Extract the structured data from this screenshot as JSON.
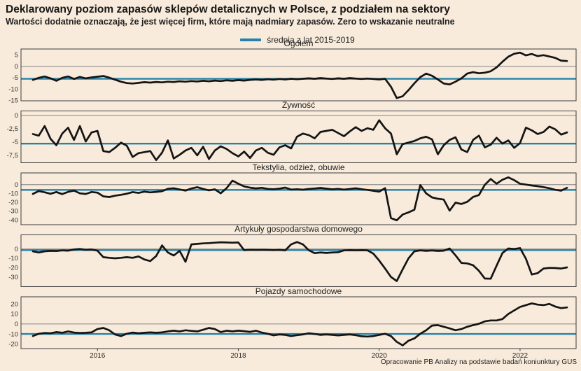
{
  "header": {
    "title": "Deklarowany poziom zapasów sklepów detalicznych w Polsce, z podziałem na sektory",
    "subtitle": "Wartości dodatnie oznaczają, że jest więcej firm, które mają nadmiary zapasów. Zero to wskazanie neutralne"
  },
  "legend": {
    "label": "średnia z lat 2015-2019"
  },
  "footer": {
    "source": "Opracowanie PB Analizy na podstawie badań koniunktury GUS"
  },
  "colors": {
    "background": "#f8ebdb",
    "series_line": "#141414",
    "average_line": "#2582a8",
    "frame": "#3d3d3d",
    "zero_line": "#8f8f8f",
    "tick_text": "#333333"
  },
  "x_axis": {
    "frequency": "monthly",
    "start": "2015-02",
    "end": "2022-09",
    "year_ticks": [
      {
        "label": "2016",
        "month_index": 11
      },
      {
        "label": "2018",
        "month_index": 35
      },
      {
        "label": "2020",
        "month_index": 59
      },
      {
        "label": "2022",
        "month_index": 83
      }
    ]
  },
  "chart_data": [
    {
      "type": "line",
      "title": "Ogółem",
      "slug": "ogolem",
      "ylim": [
        -15.2,
        7.6
      ],
      "ytick_values": [
        5,
        0,
        -5,
        -10,
        -15
      ],
      "ytick_labels": [
        "5",
        "0",
        "-5",
        "-10",
        "-15"
      ],
      "average_2015_2019": -5.5,
      "values": [
        -6.0,
        -5.1,
        -4.5,
        -5.3,
        -6.4,
        -5.1,
        -4.5,
        -5.6,
        -4.7,
        -5.3,
        -4.9,
        -4.6,
        -4.3,
        -5.0,
        -5.9,
        -6.8,
        -7.4,
        -7.6,
        -7.3,
        -7.0,
        -7.2,
        -6.9,
        -7.1,
        -6.8,
        -6.9,
        -6.6,
        -6.8,
        -6.5,
        -6.7,
        -6.4,
        -6.6,
        -6.3,
        -6.5,
        -6.2,
        -6.4,
        -6.1,
        -6.3,
        -6.0,
        -5.8,
        -6.0,
        -5.7,
        -5.9,
        -5.6,
        -5.8,
        -5.5,
        -5.7,
        -5.5,
        -5.3,
        -5.5,
        -5.2,
        -5.4,
        -5.6,
        -5.3,
        -5.5,
        -5.2,
        -5.4,
        -5.6,
        -5.4,
        -5.6,
        -5.8,
        -5.5,
        -9.0,
        -14.0,
        -13.2,
        -10.5,
        -7.5,
        -4.8,
        -3.2,
        -4.2,
        -5.8,
        -7.6,
        -8.0,
        -6.8,
        -5.3,
        -3.2,
        -2.6,
        -3.1,
        -2.8,
        -2.2,
        -0.5,
        2.0,
        4.2,
        5.5,
        6.0,
        4.8,
        5.4,
        4.5,
        4.9,
        4.3,
        3.7,
        2.5,
        2.3
      ]
    },
    {
      "type": "line",
      "title": "Żywność",
      "slug": "zywnosc",
      "ylim": [
        -8.9,
        0.85
      ],
      "ytick_values": [
        0,
        -2.5,
        -5,
        -7.5
      ],
      "ytick_labels": [
        "0",
        "-2,5",
        "-5",
        "-7,5"
      ],
      "average_2015_2019": -5.3,
      "values": [
        -3.5,
        -3.8,
        -2.0,
        -4.4,
        -5.6,
        -3.4,
        -2.3,
        -4.6,
        -2.0,
        -4.9,
        -3.2,
        -2.9,
        -6.7,
        -6.9,
        -6.1,
        -5.1,
        -5.7,
        -7.8,
        -7.1,
        -6.9,
        -6.7,
        -8.4,
        -7.0,
        -4.7,
        -8.1,
        -7.4,
        -6.6,
        -6.1,
        -7.5,
        -5.9,
        -8.2,
        -6.6,
        -5.8,
        -6.3,
        -7.1,
        -7.7,
        -6.8,
        -8.0,
        -6.6,
        -6.1,
        -7.0,
        -7.4,
        -6.0,
        -5.6,
        -6.2,
        -4.0,
        -3.4,
        -3.7,
        -4.3,
        -3.1,
        -2.9,
        -2.7,
        -3.3,
        -3.9,
        -3.0,
        -2.2,
        -2.9,
        -2.4,
        -2.7,
        -0.9,
        -2.4,
        -3.4,
        -7.3,
        -5.4,
        -5.1,
        -4.8,
        -4.3,
        -4.0,
        -4.5,
        -7.3,
        -5.6,
        -4.6,
        -4.1,
        -6.4,
        -6.9,
        -4.6,
        -3.8,
        -6.0,
        -5.5,
        -4.2,
        -5.3,
        -4.7,
        -6.1,
        -5.2,
        -2.3,
        -2.8,
        -3.5,
        -3.1,
        -2.1,
        -2.6,
        -3.6,
        -3.2
      ]
    },
    {
      "type": "line",
      "title": "Tekstylia, odzież, obuwie",
      "slug": "tekstylia-odziez-obuwie",
      "ylim": [
        -45.5,
        13.3
      ],
      "ytick_values": [
        0,
        -10,
        -20,
        -30,
        -40
      ],
      "ytick_labels": [
        "0",
        "-10",
        "-20",
        "-30",
        "-40"
      ],
      "average_2015_2019": -6.0,
      "values": [
        -10.5,
        -7.3,
        -8.7,
        -10.4,
        -8.4,
        -10.8,
        -8.2,
        -6.8,
        -9.9,
        -10.6,
        -8.4,
        -9.1,
        -13.3,
        -14.1,
        -12.6,
        -11.6,
        -10.3,
        -8.5,
        -9.4,
        -8.0,
        -8.8,
        -8.2,
        -7.4,
        -4.7,
        -4.2,
        -5.5,
        -6.8,
        -4.4,
        -2.9,
        -4.9,
        -6.5,
        -5.4,
        -9.8,
        -4.0,
        4.5,
        1.0,
        -2.0,
        -3.5,
        -4.3,
        -3.6,
        -4.8,
        -5.2,
        -4.6,
        -3.4,
        -5.6,
        -5.2,
        -5.8,
        -5.0,
        -4.4,
        -3.8,
        -4.6,
        -5.4,
        -4.8,
        -5.6,
        -5.0,
        -4.2,
        -5.2,
        -6.0,
        -7.0,
        -8.0,
        -4.0,
        -38.0,
        -40.5,
        -34.0,
        -31.5,
        -28.5,
        -0.5,
        -10.0,
        -14.5,
        -16.0,
        -17.0,
        -29.5,
        -20.5,
        -22.0,
        -19.5,
        -14.0,
        -11.8,
        -0.3,
        6.4,
        1.0,
        5.6,
        8.2,
        5.1,
        1.0,
        0.0,
        -1.0,
        -1.8,
        -2.8,
        -4.1,
        -5.9,
        -6.9,
        -3.6
      ]
    },
    {
      "type": "line",
      "title": "Artykuły gospodarstwa domowego",
      "slug": "artykuly-gospodarstwa-domowego",
      "ylim": [
        -40.5,
        15.2
      ],
      "ytick_values": [
        0,
        -10,
        -20,
        -30
      ],
      "ytick_labels": [
        "0",
        "-10",
        "-20",
        "-30"
      ],
      "average_2015_2019": -1.2,
      "values": [
        -2.5,
        -3.8,
        -2.5,
        -2.0,
        -2.3,
        -1.5,
        -1.8,
        -0.5,
        0.0,
        -0.8,
        -0.5,
        -1.8,
        -8.8,
        -9.5,
        -10.0,
        -9.5,
        -8.8,
        -9.5,
        -8.0,
        -11.3,
        -13.0,
        -7.5,
        3.8,
        -3.8,
        -7.0,
        -2.0,
        -13.8,
        5.0,
        5.5,
        6.0,
        6.3,
        6.8,
        7.2,
        7.0,
        6.8,
        7.0,
        -1.3,
        -0.8,
        -1.0,
        -0.8,
        -1.0,
        -1.2,
        -1.0,
        -1.5,
        5.0,
        7.5,
        5.0,
        -1.3,
        -4.5,
        -3.8,
        -4.3,
        -3.8,
        -3.5,
        -1.5,
        -1.3,
        -1.4,
        -1.3,
        -1.4,
        -5.0,
        -12.5,
        -21.0,
        -30.0,
        -34.5,
        -22.0,
        -10.0,
        -2.5,
        -1.5,
        -2.0,
        -1.6,
        -2.1,
        -1.8,
        0.5,
        -6.8,
        -15.0,
        -15.5,
        -17.5,
        -23.5,
        -31.8,
        -32.0,
        -18.0,
        -4.3,
        0.5,
        0.0,
        1.0,
        -10.5,
        -27.5,
        -26.0,
        -21.0,
        -20.3,
        -20.5,
        -21.0,
        -19.8
      ]
    },
    {
      "type": "line",
      "title": "Pojazdy samochodowe",
      "slug": "pojazdy-samochodowe",
      "ylim": [
        -24.6,
        27.1
      ],
      "ytick_values": [
        20,
        10,
        0,
        -10,
        -20
      ],
      "ytick_labels": [
        "20",
        "10",
        "0",
        "-10",
        "-20"
      ],
      "average_2015_2019": -10.0,
      "values": [
        -12.0,
        -9.8,
        -9.0,
        -9.3,
        -8.1,
        -8.8,
        -7.4,
        -8.6,
        -9.0,
        -8.8,
        -8.4,
        -5.1,
        -4.0,
        -6.3,
        -10.5,
        -12.1,
        -9.8,
        -8.6,
        -9.3,
        -8.8,
        -8.4,
        -8.8,
        -8.4,
        -7.4,
        -6.7,
        -7.4,
        -6.3,
        -6.9,
        -7.4,
        -5.8,
        -4.0,
        -5.1,
        -8.1,
        -6.7,
        -7.4,
        -6.7,
        -7.2,
        -7.9,
        -6.7,
        -8.6,
        -9.8,
        -11.4,
        -10.5,
        -10.9,
        -12.1,
        -11.2,
        -10.5,
        -9.3,
        -10.0,
        -10.9,
        -10.5,
        -10.9,
        -11.4,
        -10.9,
        -10.5,
        -11.2,
        -12.3,
        -12.6,
        -12.1,
        -10.9,
        -9.8,
        -12.1,
        -17.9,
        -21.4,
        -16.7,
        -14.4,
        -9.8,
        -6.3,
        -1.6,
        -1.2,
        -2.8,
        -4.4,
        -6.3,
        -5.1,
        -2.8,
        -1.2,
        0.2,
        2.6,
        3.5,
        3.5,
        4.9,
        10.0,
        13.5,
        17.0,
        18.8,
        20.5,
        19.3,
        18.8,
        20.0,
        17.4,
        15.8,
        16.5
      ]
    }
  ]
}
